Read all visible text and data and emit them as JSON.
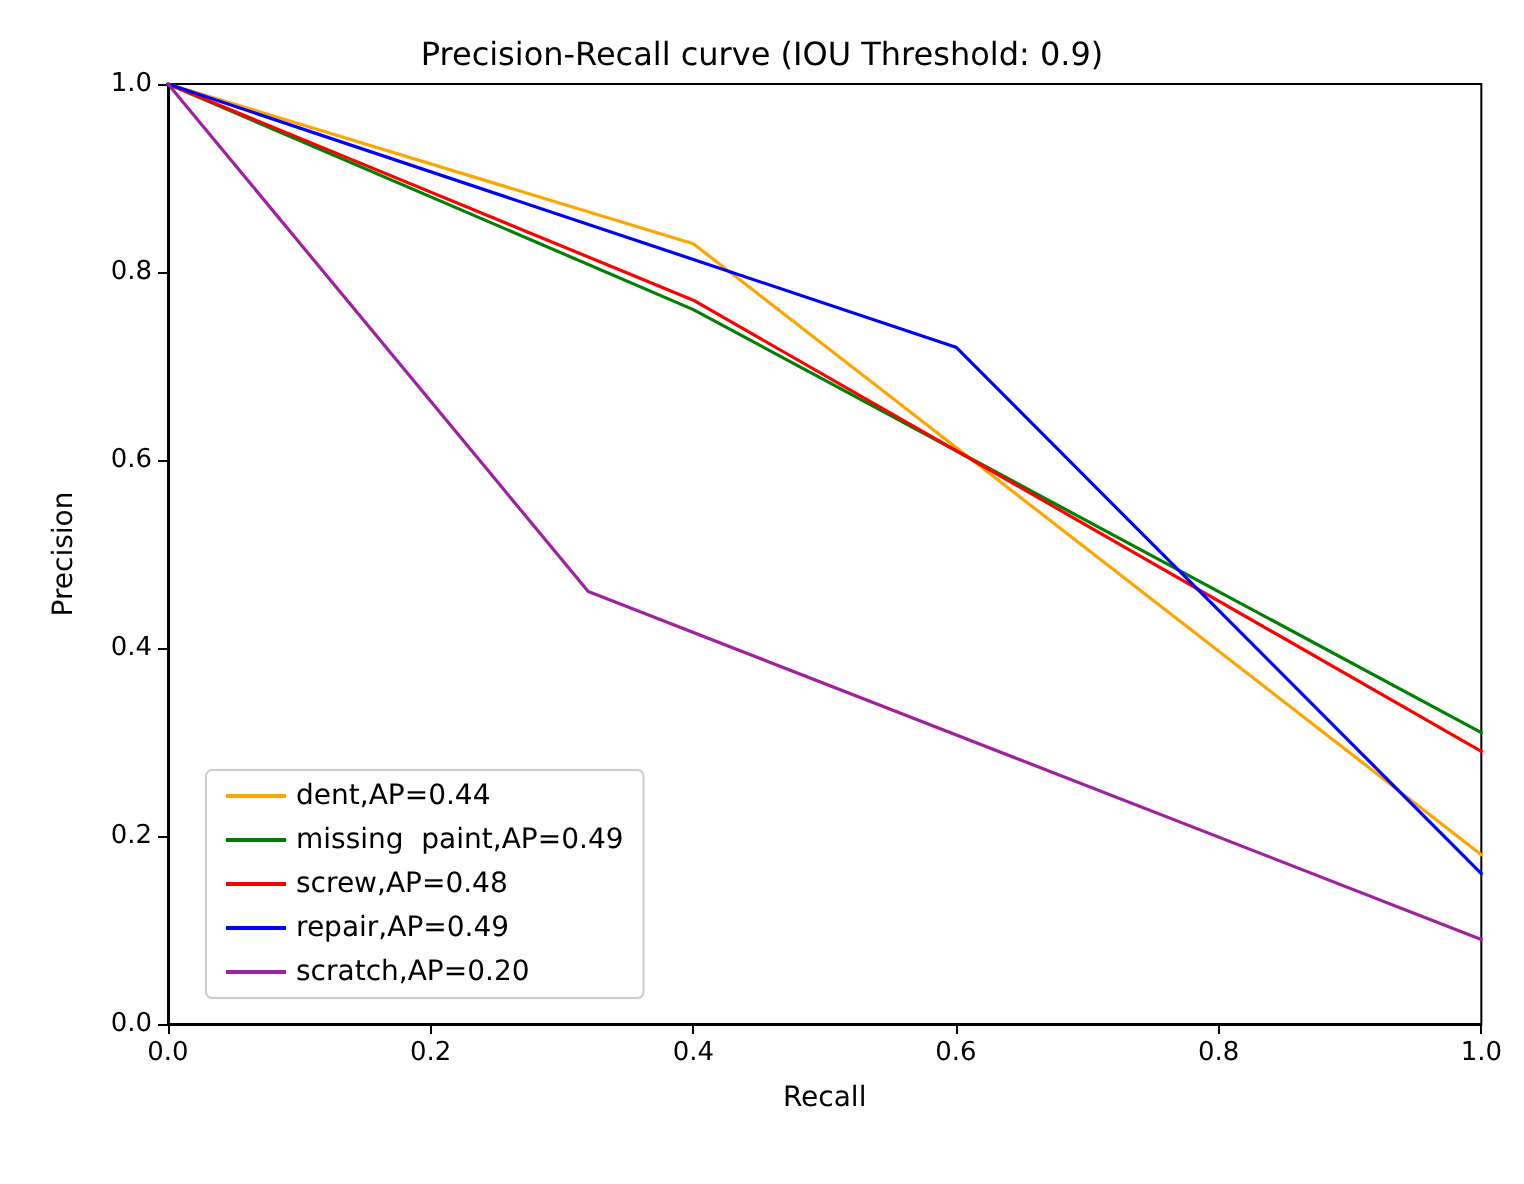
{
  "chart_data": {
    "type": "line",
    "title": "Precision-Recall curve (IOU Threshold: 0.9)",
    "xlabel": "Recall",
    "ylabel": "Precision",
    "xlim": [
      0,
      1
    ],
    "ylim": [
      0,
      1
    ],
    "xticks": [
      {
        "value": 0,
        "label": "0.0"
      },
      {
        "value": 0.2,
        "label": "0.2"
      },
      {
        "value": 0.4,
        "label": "0.4"
      },
      {
        "value": 0.6,
        "label": "0.6"
      },
      {
        "value": 0.8,
        "label": "0.8"
      },
      {
        "value": 1,
        "label": "1.0"
      }
    ],
    "yticks": [
      {
        "value": 0,
        "label": "0.0"
      },
      {
        "value": 0.2,
        "label": "0.2"
      },
      {
        "value": 0.4,
        "label": "0.4"
      },
      {
        "value": 0.6,
        "label": "0.6"
      },
      {
        "value": 0.8,
        "label": "0.8"
      },
      {
        "value": 1,
        "label": "1.0"
      }
    ],
    "grid": false,
    "legend": "bottom left",
    "marker": "none",
    "line_style": "solid",
    "series": [
      {
        "name": "dent,AP=0.44",
        "color": "#ffa500",
        "x": [
          0,
          0.4,
          1
        ],
        "values": [
          1,
          0.83,
          0.18
        ]
      },
      {
        "name": "missing  paint,AP=0.49",
        "color": "#008000",
        "x": [
          0,
          0.4,
          1
        ],
        "values": [
          1,
          0.76,
          0.31
        ]
      },
      {
        "name": "screw,AP=0.48",
        "color": "#ff0000",
        "x": [
          0,
          0.4,
          1
        ],
        "values": [
          1,
          0.77,
          0.29
        ]
      },
      {
        "name": "repair,AP=0.49",
        "color": "#0000ff",
        "x": [
          0,
          0.6,
          1
        ],
        "values": [
          1,
          0.72,
          0.16
        ]
      },
      {
        "name": "scratch,AP=0.20",
        "color": "#a020a0",
        "x": [
          0,
          0.32,
          1
        ],
        "values": [
          1,
          0.46,
          0.09
        ]
      }
    ]
  }
}
